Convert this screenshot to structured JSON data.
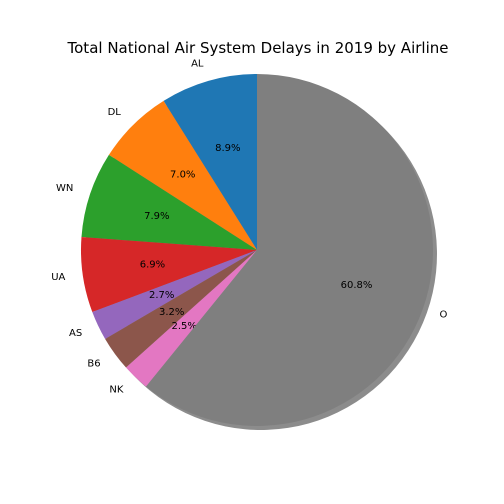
{
  "chart_data": {
    "type": "pie",
    "title": "Total National Air System Delays in 2019 by Airline",
    "start_angle_deg": 90,
    "direction": "counterclockwise",
    "shadow": true,
    "slices": [
      {
        "label": "AL",
        "value": 8.9,
        "pct_label": "8.9%",
        "color": "#1f77b4"
      },
      {
        "label": "DL",
        "value": 7.0,
        "pct_label": "7.0%",
        "color": "#ff7f0e"
      },
      {
        "label": "WN",
        "value": 7.9,
        "pct_label": "7.9%",
        "color": "#2ca02c"
      },
      {
        "label": "UA",
        "value": 6.9,
        "pct_label": "6.9%",
        "color": "#d62728"
      },
      {
        "label": "AS",
        "value": 2.7,
        "pct_label": "2.7%",
        "color": "#9467bd"
      },
      {
        "label": "B6",
        "value": 3.2,
        "pct_label": "3.2%",
        "color": "#8c564b"
      },
      {
        "label": "NK",
        "value": 2.5,
        "pct_label": "2.5%",
        "color": "#e377c2"
      },
      {
        "label": "O",
        "value": 60.8,
        "pct_label": "60.8%",
        "color": "#7f7f7f"
      }
    ]
  }
}
